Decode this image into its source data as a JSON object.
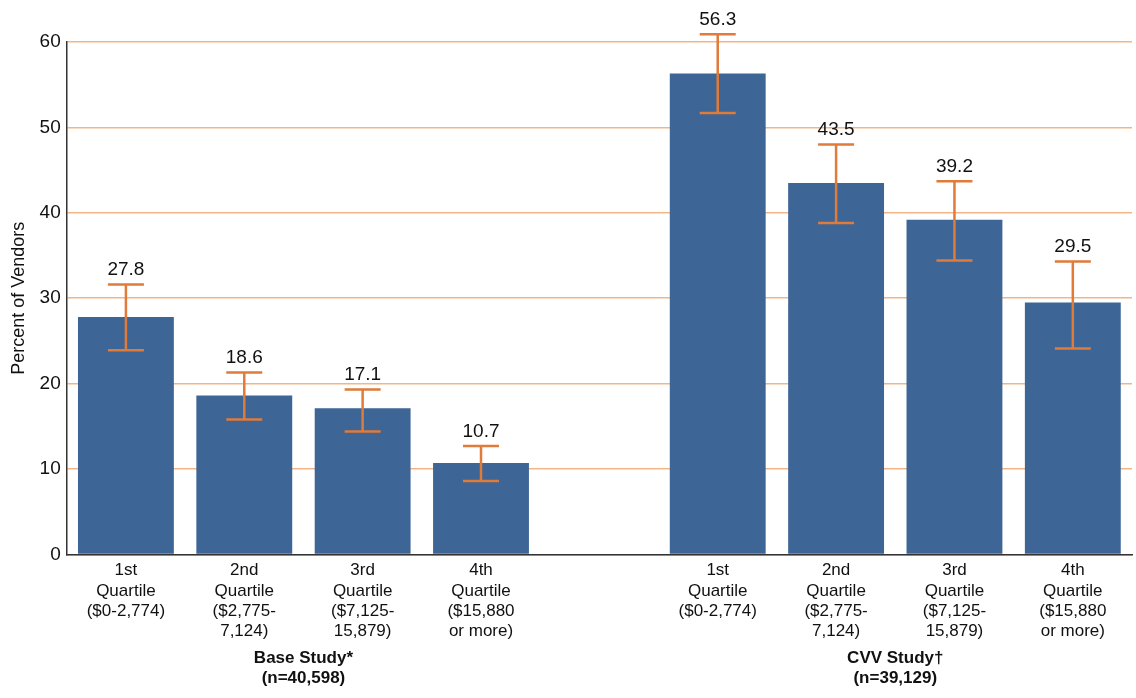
{
  "chart_data": {
    "type": "bar",
    "ylabel": "Percent of Vendors",
    "categories": [
      "1st\nQuartile\n($0-2,774)",
      "2nd\nQuartile\n($2,775-\n7,124)",
      "3rd\nQuartile\n($7,125-\n15,879)",
      "4th\nQuartile\n($15,880\nor more)",
      null,
      "1st\nQuartile\n($0-2,774)",
      "2nd\nQuartile\n($2,775-\n7,124)",
      "3rd\nQuartile\n($7,125-\n15,879)",
      "4th\nQuartile\n($15,880\nor more)"
    ],
    "values": [
      27.8,
      18.6,
      17.1,
      10.7,
      null,
      56.3,
      43.5,
      39.2,
      29.5
    ],
    "errors": [
      [
        23.9,
        31.6
      ],
      [
        15.8,
        21.3
      ],
      [
        14.4,
        19.3
      ],
      [
        8.6,
        12.7
      ],
      null,
      [
        51.7,
        60.9
      ],
      [
        38.8,
        48.0
      ],
      [
        34.4,
        43.7
      ],
      [
        24.1,
        34.3
      ]
    ],
    "color": "#3d6596",
    "ylim": [
      0,
      60
    ],
    "yticks": [
      0,
      10,
      20,
      30,
      40,
      50,
      60
    ],
    "grid": "y",
    "data_labels": true,
    "annotations": [
      "Base Study*\n(n=40,598)",
      "CVV Study†\n(n=39,129)"
    ]
  }
}
